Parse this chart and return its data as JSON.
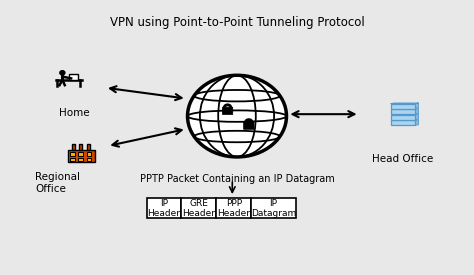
{
  "title": "VPN using Point-to-Point Tunneling Protocol",
  "bg_color": "#e8e8e8",
  "fg_color": "#000000",
  "packet_label": "PPTP Packet Containing an IP Datagram",
  "packet_cells": [
    "IP\nHeader",
    "GRE\nHeader",
    "PPP\nHeader",
    "IP\nDatagram"
  ],
  "home_label": "Home",
  "regional_label": "Regional\nOffice",
  "headoffice_label": "Head Office",
  "factory_color": "#cc4400",
  "factory_window_color": "#ffaa00",
  "server_color": "#aad4f0",
  "server_edge_color": "#5599cc",
  "server_side_color": "#88bbdd",
  "server_top_color": "#ccddee"
}
